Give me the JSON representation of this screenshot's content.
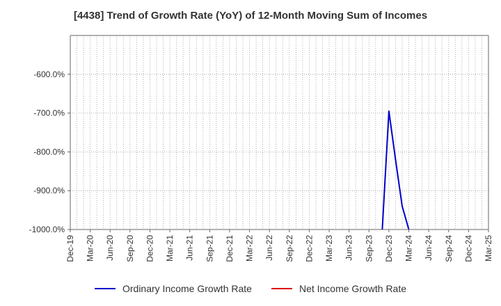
{
  "title": "[4438]  Trend of Growth Rate (YoY) of 12-Month Moving Sum of Incomes",
  "colors": {
    "ordinary": "#0000cc",
    "net": "#dd0000",
    "grid": "#999999",
    "axis": "#666666",
    "text": "#333333"
  },
  "legend": {
    "ordinary_label": "Ordinary Income Growth Rate",
    "net_label": "Net Income Growth Rate"
  },
  "chart_data": {
    "type": "line",
    "title": "[4438]  Trend of Growth Rate (YoY) of 12-Month Moving Sum of Incomes",
    "xlabel": "",
    "ylabel": "",
    "x_ticks": [
      "Dec-19",
      "Mar-20",
      "Jun-20",
      "Sep-20",
      "Dec-20",
      "Mar-21",
      "Jun-21",
      "Sep-21",
      "Dec-21",
      "Mar-22",
      "Jun-22",
      "Sep-22",
      "Dec-22",
      "Mar-23",
      "Jun-23",
      "Sep-23",
      "Dec-23",
      "Mar-24",
      "Jun-24",
      "Sep-24",
      "Dec-24",
      "Mar-25"
    ],
    "y_ticks": [
      {
        "value": -600,
        "label": "-600.0%"
      },
      {
        "value": -700,
        "label": "-700.0%"
      },
      {
        "value": -800,
        "label": "-800.0%"
      },
      {
        "value": -900,
        "label": "-900.0%"
      },
      {
        "value": -1000,
        "label": "-1000.0%"
      }
    ],
    "ylim": [
      -1000,
      -500
    ],
    "xlim": [
      "Dec-19",
      "Mar-25"
    ],
    "grid": true,
    "legend_position": "bottom",
    "series": [
      {
        "name": "Ordinary Income Growth Rate",
        "color_key": "ordinary",
        "points": [
          {
            "x": "2023-11",
            "y": -1000
          },
          {
            "x": "2023-12",
            "y": -695
          },
          {
            "x": "2024-01",
            "y": -820
          },
          {
            "x": "2024-02",
            "y": -940
          },
          {
            "x": "2024-03",
            "y": -1000
          }
        ]
      },
      {
        "name": "Net Income Growth Rate",
        "color_key": "net",
        "points": []
      }
    ]
  }
}
